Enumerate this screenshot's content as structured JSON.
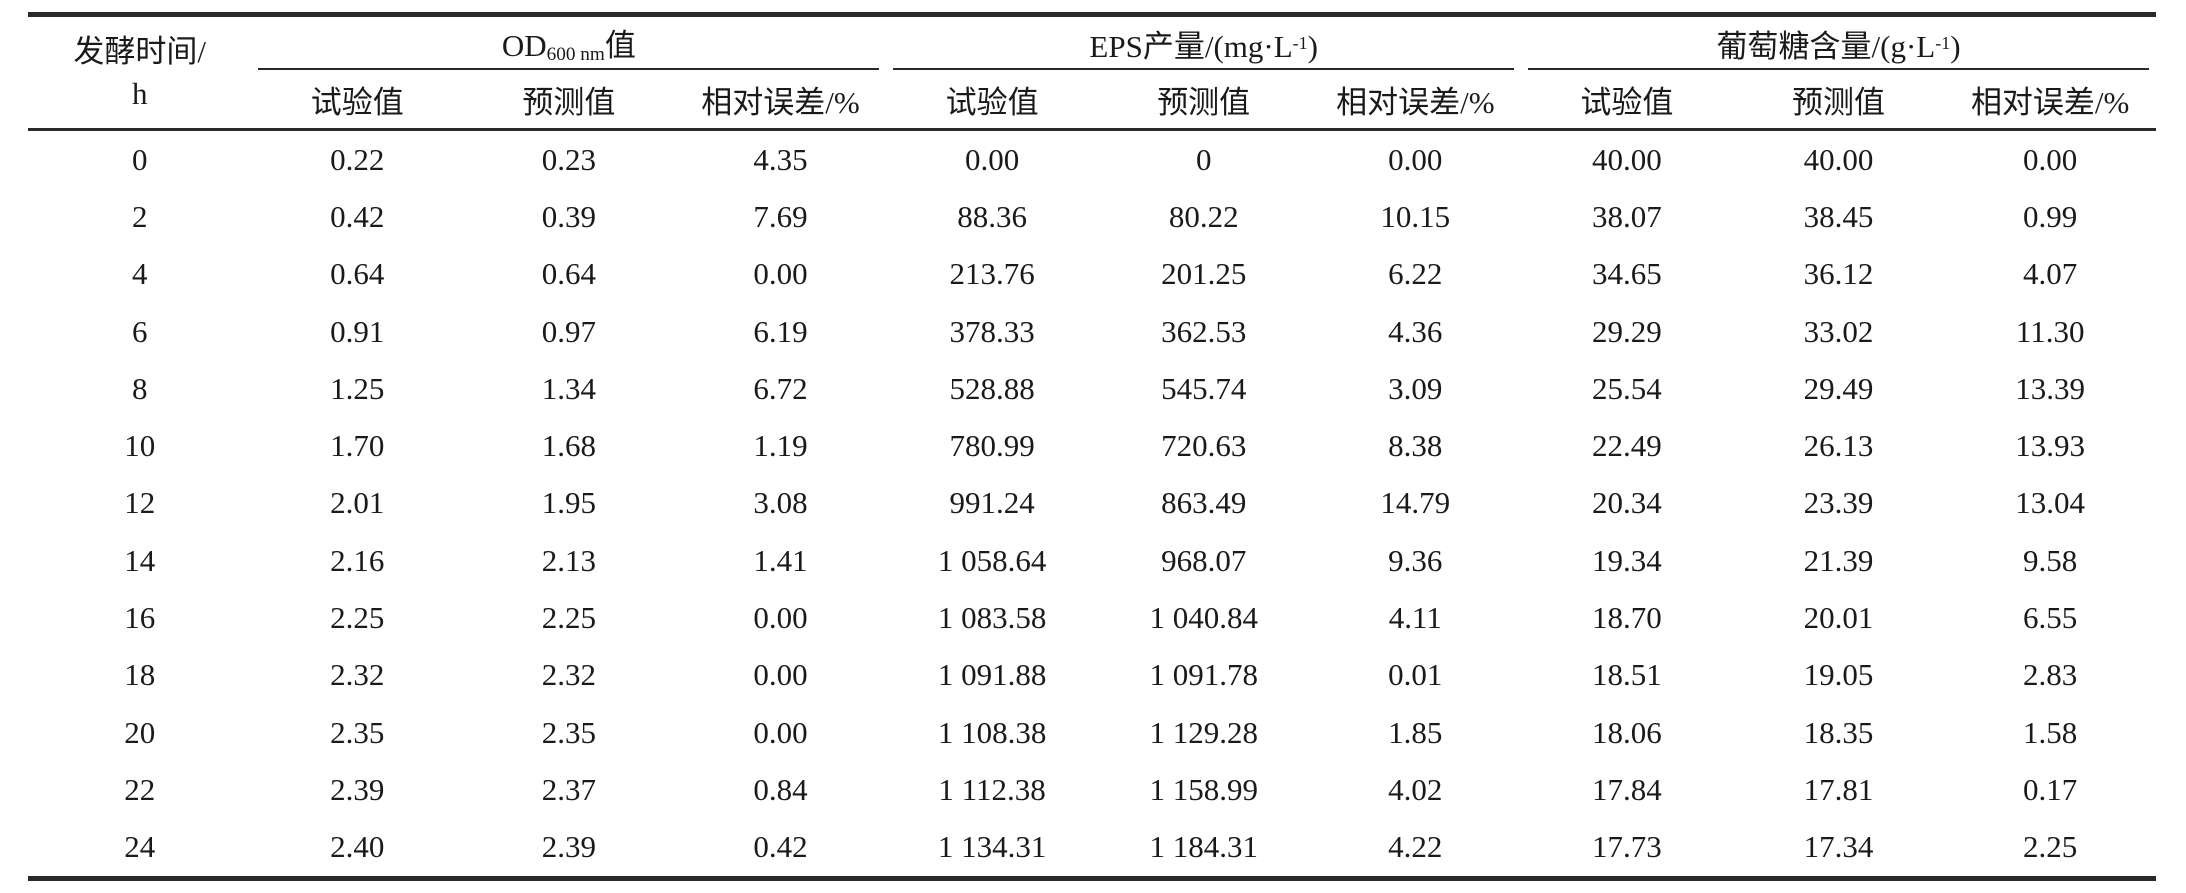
{
  "table": {
    "time_header": {
      "line1": "发酵时间/",
      "line2": "h"
    },
    "groups": [
      {
        "pre": "OD",
        "sub": "600 nm",
        "post": "值"
      },
      {
        "pre": "EPS产量/(mg·L",
        "sup": "-1",
        "post": ")"
      },
      {
        "pre": "葡萄糖含量/(g·L",
        "sup": "-1",
        "post": ")"
      }
    ],
    "subheaders": [
      "试验值",
      "预测值",
      "相对误差/%"
    ],
    "rows": [
      {
        "time": "0",
        "od": [
          "0.22",
          "0.23",
          "4.35"
        ],
        "eps": [
          "0.00",
          "0",
          "0.00"
        ],
        "glucose": [
          "40.00",
          "40.00",
          "0.00"
        ]
      },
      {
        "time": "2",
        "od": [
          "0.42",
          "0.39",
          "7.69"
        ],
        "eps": [
          "88.36",
          "80.22",
          "10.15"
        ],
        "glucose": [
          "38.07",
          "38.45",
          "0.99"
        ]
      },
      {
        "time": "4",
        "od": [
          "0.64",
          "0.64",
          "0.00"
        ],
        "eps": [
          "213.76",
          "201.25",
          "6.22"
        ],
        "glucose": [
          "34.65",
          "36.12",
          "4.07"
        ]
      },
      {
        "time": "6",
        "od": [
          "0.91",
          "0.97",
          "6.19"
        ],
        "eps": [
          "378.33",
          "362.53",
          "4.36"
        ],
        "glucose": [
          "29.29",
          "33.02",
          "11.30"
        ]
      },
      {
        "time": "8",
        "od": [
          "1.25",
          "1.34",
          "6.72"
        ],
        "eps": [
          "528.88",
          "545.74",
          "3.09"
        ],
        "glucose": [
          "25.54",
          "29.49",
          "13.39"
        ]
      },
      {
        "time": "10",
        "od": [
          "1.70",
          "1.68",
          "1.19"
        ],
        "eps": [
          "780.99",
          "720.63",
          "8.38"
        ],
        "glucose": [
          "22.49",
          "26.13",
          "13.93"
        ]
      },
      {
        "time": "12",
        "od": [
          "2.01",
          "1.95",
          "3.08"
        ],
        "eps": [
          "991.24",
          "863.49",
          "14.79"
        ],
        "glucose": [
          "20.34",
          "23.39",
          "13.04"
        ]
      },
      {
        "time": "14",
        "od": [
          "2.16",
          "2.13",
          "1.41"
        ],
        "eps": [
          "1 058.64",
          "968.07",
          "9.36"
        ],
        "glucose": [
          "19.34",
          "21.39",
          "9.58"
        ]
      },
      {
        "time": "16",
        "od": [
          "2.25",
          "2.25",
          "0.00"
        ],
        "eps": [
          "1 083.58",
          "1 040.84",
          "4.11"
        ],
        "glucose": [
          "18.70",
          "20.01",
          "6.55"
        ]
      },
      {
        "time": "18",
        "od": [
          "2.32",
          "2.32",
          "0.00"
        ],
        "eps": [
          "1 091.88",
          "1 091.78",
          "0.01"
        ],
        "glucose": [
          "18.51",
          "19.05",
          "2.83"
        ]
      },
      {
        "time": "20",
        "od": [
          "2.35",
          "2.35",
          "0.00"
        ],
        "eps": [
          "1 108.38",
          "1 129.28",
          "1.85"
        ],
        "glucose": [
          "18.06",
          "18.35",
          "1.58"
        ]
      },
      {
        "time": "22",
        "od": [
          "2.39",
          "2.37",
          "0.84"
        ],
        "eps": [
          "1 112.38",
          "1 158.99",
          "4.02"
        ],
        "glucose": [
          "17.84",
          "17.81",
          "0.17"
        ]
      },
      {
        "time": "24",
        "od": [
          "2.40",
          "2.39",
          "0.42"
        ],
        "eps": [
          "1 134.31",
          "1 184.31",
          "4.22"
        ],
        "glucose": [
          "17.73",
          "17.34",
          "2.25"
        ]
      }
    ]
  },
  "colors": {
    "background": "#ffffff",
    "text": "#1a1a1a",
    "rule": "#2a2a2a"
  }
}
